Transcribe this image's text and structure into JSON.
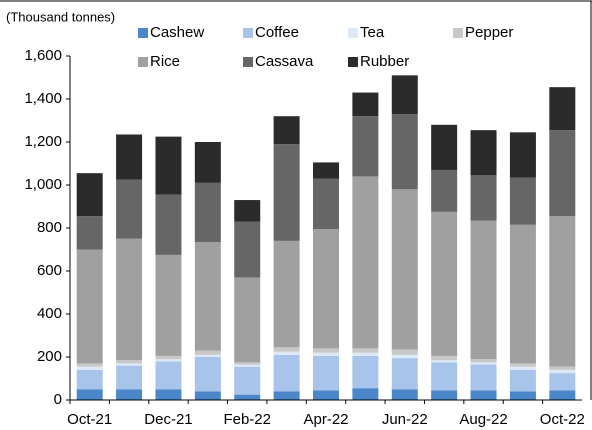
{
  "chart_data": {
    "type": "stacked_bar",
    "y_label": "(Thousand tonnes)",
    "categories": [
      "Oct-21",
      null,
      "Dec-21",
      null,
      "Feb-22",
      null,
      "Apr-22",
      null,
      "Jun-22",
      null,
      "Aug-22",
      null,
      "Oct-22"
    ],
    "series": [
      {
        "name": "Cashew",
        "color": "#4a86c8",
        "values": [
          50,
          50,
          50,
          40,
          25,
          40,
          45,
          55,
          50,
          45,
          45,
          40,
          45
        ]
      },
      {
        "name": "Coffee",
        "color": "#a9c4eb",
        "values": [
          90,
          110,
          130,
          160,
          130,
          170,
          160,
          150,
          145,
          130,
          120,
          100,
          80
        ]
      },
      {
        "name": "Tea",
        "color": "#dde9f7",
        "values": [
          15,
          10,
          10,
          10,
          10,
          15,
          15,
          15,
          15,
          10,
          10,
          15,
          15
        ]
      },
      {
        "name": "Pepper",
        "color": "#c8c8c8",
        "values": [
          15,
          15,
          15,
          20,
          10,
          20,
          20,
          20,
          25,
          20,
          15,
          15,
          15
        ]
      },
      {
        "name": "Rice",
        "color": "#a0a0a0",
        "values": [
          530,
          565,
          470,
          505,
          395,
          495,
          555,
          800,
          745,
          670,
          645,
          645,
          700
        ]
      },
      {
        "name": "Cassava",
        "color": "#666666",
        "values": [
          155,
          275,
          280,
          275,
          260,
          450,
          235,
          280,
          350,
          195,
          210,
          220,
          400
        ]
      },
      {
        "name": "Rubber",
        "color": "#2b2b2b",
        "values": [
          200,
          210,
          270,
          190,
          100,
          130,
          75,
          110,
          180,
          210,
          210,
          210,
          200
        ]
      }
    ],
    "ylim": [
      0,
      1600
    ],
    "yticks": [
      0,
      200,
      400,
      600,
      800,
      {
        "value": 1000,
        "label": "1,000"
      },
      {
        "value": 1200,
        "label": "1,200"
      },
      {
        "value": 1400,
        "label": "1,400"
      },
      {
        "value": 1600,
        "label": "1,600"
      }
    ]
  }
}
